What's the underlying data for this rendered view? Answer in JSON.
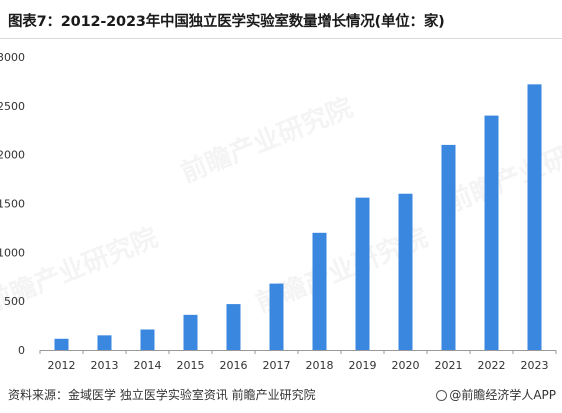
{
  "title": "图表7：2012-2023年中国独立医学实验室数量增长情况(单位：家)",
  "watermark": "前瞻产业研究院",
  "source": "资料来源：金域医学 独立医学实验室资讯 前瞻产业研究院",
  "publisher": "@前瞻经济学人APP",
  "colors": {
    "bar": "#3a87e0",
    "axis": "#999999",
    "text": "#333333"
  },
  "chart_data": {
    "type": "bar",
    "title": "图表7：2012-2023年中国独立医学实验室数量增长情况(单位：家)",
    "categories": [
      "2012",
      "2013",
      "2014",
      "2015",
      "2016",
      "2017",
      "2018",
      "2019",
      "2020",
      "2021",
      "2022",
      "2023"
    ],
    "values": [
      115,
      150,
      210,
      360,
      470,
      680,
      1200,
      1560,
      1600,
      2100,
      2400,
      2720
    ],
    "yticks": [
      0,
      500,
      1000,
      1500,
      2000,
      2500,
      3000
    ],
    "ylim": [
      0,
      3000
    ],
    "grid": false,
    "legend": "none"
  }
}
